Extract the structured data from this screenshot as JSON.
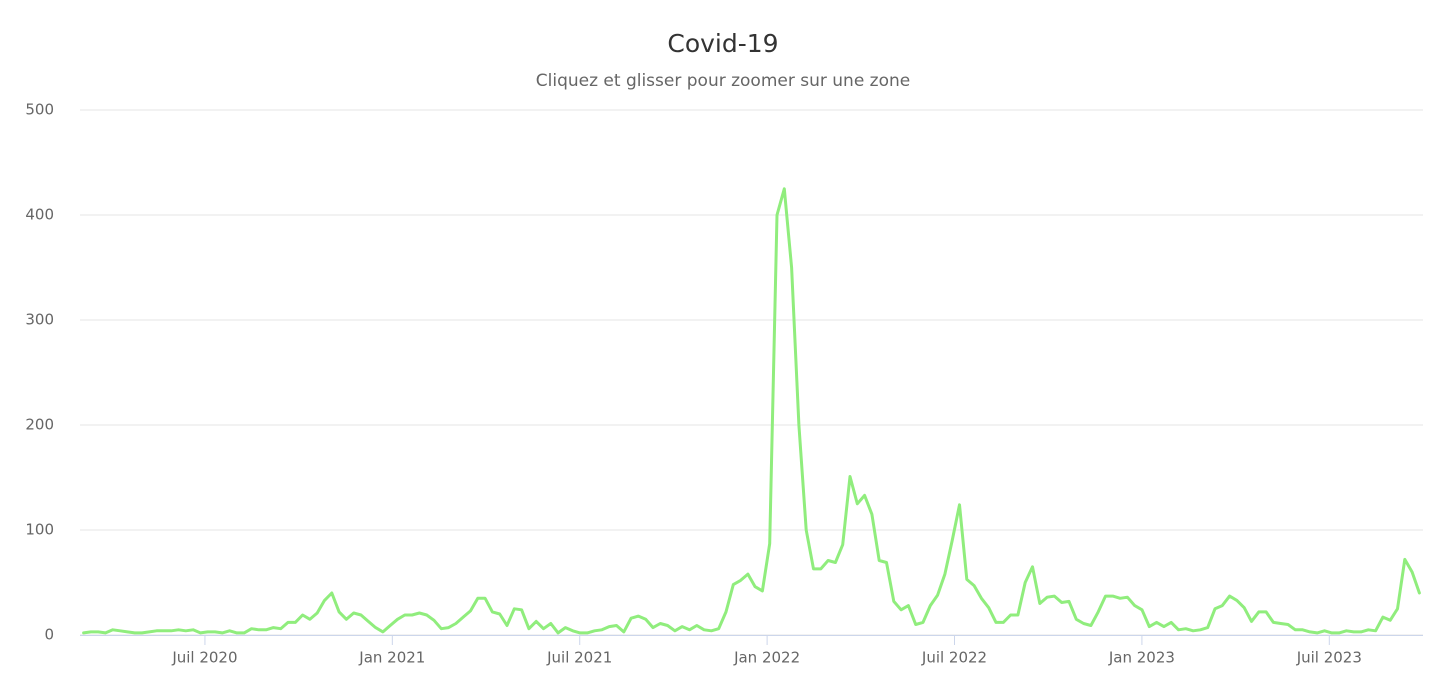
{
  "chart_data": {
    "type": "line",
    "title": "Covid-19",
    "subtitle": "Cliquez et glisser pour zoomer sur une zone",
    "xlim": [
      "2020-03",
      "2023-10"
    ],
    "xticks": [
      {
        "value": "2020-07",
        "label": "Juil 2020"
      },
      {
        "value": "2021-01",
        "label": "Jan 2021"
      },
      {
        "value": "2021-07",
        "label": "Juil 2021"
      },
      {
        "value": "2022-01",
        "label": "Jan 2022"
      },
      {
        "value": "2022-07",
        "label": "Juil 2022"
      },
      {
        "value": "2023-01",
        "label": "Jan 2023"
      },
      {
        "value": "2023-07",
        "label": "Juil 2023"
      }
    ],
    "ylim": [
      0,
      500
    ],
    "yticks": [
      0,
      100,
      200,
      300,
      400,
      500
    ],
    "grid": true,
    "series": [
      {
        "color": "#90ed7d",
        "values": [
          2,
          3,
          3,
          2,
          5,
          4,
          3,
          2,
          2,
          3,
          4,
          4,
          4,
          5,
          4,
          5,
          2,
          3,
          3,
          2,
          4,
          2,
          2,
          6,
          5,
          5,
          7,
          6,
          12,
          12,
          19,
          15,
          21,
          33,
          40,
          22,
          15,
          21,
          19,
          13,
          7,
          3,
          9,
          15,
          19,
          19,
          21,
          19,
          14,
          6,
          7,
          11,
          17,
          23,
          35,
          35,
          22,
          20,
          9,
          25,
          24,
          6,
          13,
          6,
          11,
          2,
          7,
          4,
          2,
          2,
          4,
          5,
          8,
          9,
          3,
          16,
          18,
          15,
          7,
          11,
          9,
          4,
          8,
          5,
          9,
          5,
          4,
          6,
          22,
          48,
          52,
          58,
          46,
          42,
          87,
          400,
          425,
          350,
          200,
          100,
          63,
          63,
          71,
          69,
          86,
          151,
          125,
          133,
          115,
          71,
          69,
          32,
          24,
          28,
          10,
          12,
          28,
          38,
          58,
          90,
          124,
          53,
          47,
          35,
          26,
          12,
          12,
          19,
          19,
          50,
          65,
          30,
          36,
          37,
          31,
          32,
          15,
          11,
          9,
          22,
          37,
          37,
          35,
          36,
          28,
          24,
          8,
          12,
          8,
          12,
          5,
          6,
          4,
          5,
          7,
          25,
          28,
          37,
          33,
          26,
          13,
          22,
          22,
          12,
          11,
          10,
          5,
          5,
          3,
          2,
          4,
          2,
          2,
          4,
          3,
          3,
          5,
          4,
          17,
          14,
          25,
          72,
          60,
          40
        ]
      }
    ]
  }
}
